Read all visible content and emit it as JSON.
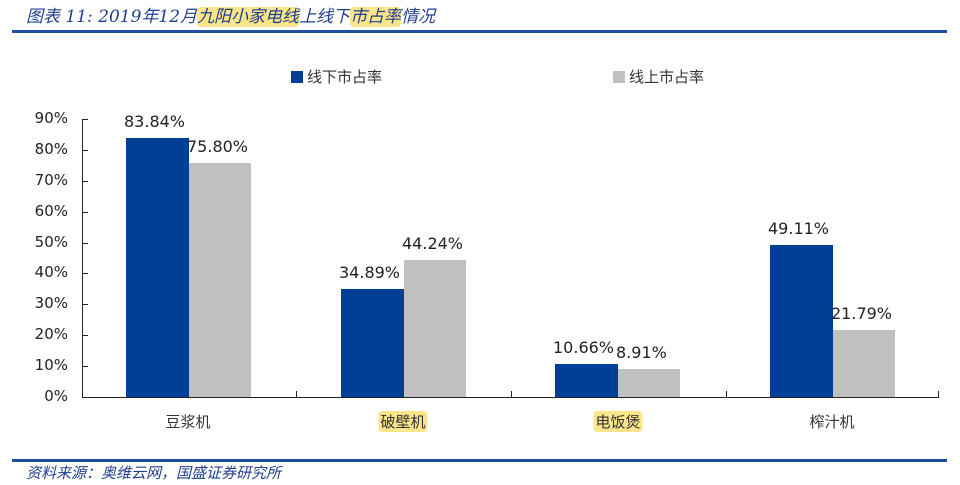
{
  "header": {
    "title_prefix": "图表 11:  2019年12月",
    "title_hl1": "九阳小家电线",
    "title_mid": "上线下",
    "title_hl2": "市占率",
    "title_suffix": "情况"
  },
  "legend": {
    "offline_label": "线下市占率",
    "online_label": "线上市占率"
  },
  "colors": {
    "offline": "#003f98",
    "online": "#c0c0c0",
    "accent_rule": "#1f4fa0"
  },
  "axis": {
    "yticks": [
      "90%",
      "80%",
      "70%",
      "60%",
      "50%",
      "40%",
      "30%",
      "20%",
      "10%",
      "0%"
    ]
  },
  "categories": [
    "豆浆机",
    "破壁机",
    "电饭煲",
    "榨汁机"
  ],
  "labels": {
    "offline": [
      "83.84%",
      "34.89%",
      "10.66%",
      "49.11%"
    ],
    "online": [
      "75.80%",
      "44.24%",
      "8.91%",
      "21.79%"
    ]
  },
  "footer": {
    "source": "资料来源：奥维云网，国盛证券研究所"
  },
  "chart_data": {
    "type": "bar",
    "title": "2019年12月九阳小家电线上线下市占率情况",
    "categories": [
      "豆浆机",
      "破壁机",
      "电饭煲",
      "榨汁机"
    ],
    "series": [
      {
        "name": "线下市占率",
        "values": [
          83.84,
          34.89,
          10.66,
          49.11
        ],
        "color": "#003f98"
      },
      {
        "name": "线上市占率",
        "values": [
          75.8,
          44.24,
          8.91,
          21.79
        ],
        "color": "#c0c0c0"
      }
    ],
    "xlabel": "",
    "ylabel": "",
    "ylim": [
      0,
      90
    ],
    "yticks": [
      0,
      10,
      20,
      30,
      40,
      50,
      60,
      70,
      80,
      90
    ],
    "ytick_format": "percent",
    "grid": false,
    "legend_position": "top",
    "data_labels": true,
    "source": "资料来源：奥维云网，国盛证券研究所"
  }
}
